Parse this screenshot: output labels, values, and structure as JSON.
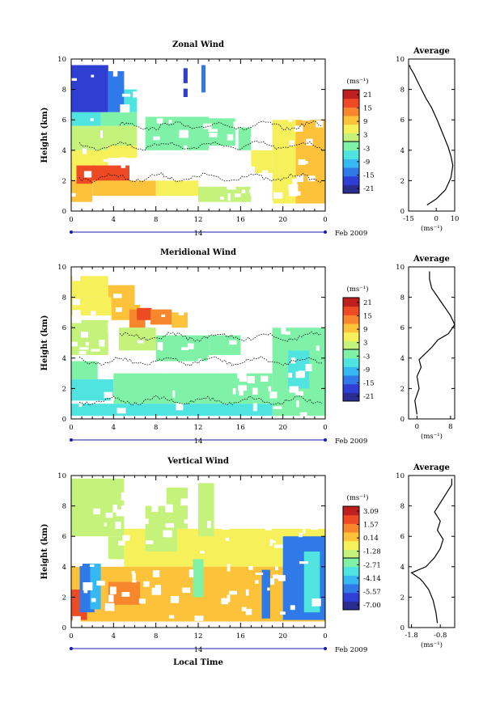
{
  "panels": [
    {
      "id": "zonal",
      "title": "Zonal Wind",
      "cb_unit": "(ms⁻¹)",
      "cb_ticks": [
        "21",
        "15",
        "9",
        "3",
        "-3",
        "-9",
        "-15",
        "-21"
      ],
      "avg_title": "Average",
      "avg_xticks": [
        "-15",
        "0",
        "10"
      ],
      "avg_unit": "(ms⁻¹)"
    },
    {
      "id": "meridional",
      "title": "Meridional Wind",
      "cb_unit": "(ms⁻¹)",
      "cb_ticks": [
        "21",
        "15",
        "9",
        "3",
        "-3",
        "-9",
        "-15",
        "-21"
      ],
      "avg_title": "Average",
      "avg_xticks": [
        "0",
        "8"
      ],
      "avg_unit": "(ms⁻¹)"
    },
    {
      "id": "vertical",
      "title": "Vertical Wind",
      "cb_unit": "(ms⁻¹)",
      "cb_ticks": [
        "3.09",
        "1.57",
        "0.14",
        "-1.28",
        "-2.71",
        "-4.14",
        "-5.57",
        "-7.00"
      ],
      "avg_title": "Average",
      "avg_xticks": [
        "-1.8",
        "-0.8"
      ],
      "avg_unit": "(ms⁻¹)"
    }
  ],
  "shared": {
    "ylabel": "Height (km)",
    "yticks": [
      "0",
      "2",
      "4",
      "6",
      "8",
      "10"
    ],
    "xticks": [
      "0",
      "4",
      "8",
      "12",
      "16",
      "20",
      "0"
    ],
    "day_label": "14",
    "date_label": "Feb 2009",
    "xlabel": "Local Time"
  },
  "colors": {
    "scale": [
      "#2b2c8f",
      "#2f3fd4",
      "#2f7ae8",
      "#36b9f2",
      "#4fe4e0",
      "#7ff2a8",
      "#c4f27a",
      "#f6f05a",
      "#fbc23a",
      "#f7862c",
      "#ee4a24",
      "#c01f1f"
    ],
    "contour": "#000000",
    "day_line": "#1a1aa8"
  },
  "chart_data": [
    {
      "type": "heatmap",
      "title": "Zonal Wind",
      "xlabel": "",
      "ylabel": "Height (km)",
      "xlim": [
        0,
        24
      ],
      "ylim": [
        0,
        10
      ],
      "clim": [
        -21,
        21
      ],
      "colorbar_unit": "(ms⁻¹)",
      "regions": [
        {
          "x": [
            0.0,
            3.5
          ],
          "y": [
            6.5,
            9.6
          ],
          "value": -15
        },
        {
          "x": [
            3.5,
            5.0
          ],
          "y": [
            6.5,
            9.2
          ],
          "value": -11
        },
        {
          "x": [
            5.0,
            6.2
          ],
          "y": [
            6.5,
            8.0
          ],
          "value": -6
        },
        {
          "x": [
            0.0,
            2.8
          ],
          "y": [
            5.6,
            6.5
          ],
          "value": -6
        },
        {
          "x": [
            2.8,
            6.2
          ],
          "y": [
            5.6,
            6.5
          ],
          "value": -3
        },
        {
          "x": [
            10.6,
            11.0
          ],
          "y": [
            7.5,
            9.4
          ],
          "value": -15
        },
        {
          "x": [
            12.3,
            12.7
          ],
          "y": [
            7.8,
            9.6
          ],
          "value": -12
        },
        {
          "x": [
            0.0,
            6.2
          ],
          "y": [
            4.0,
            5.6
          ],
          "value": 3
        },
        {
          "x": [
            7.0,
            13.0
          ],
          "y": [
            4.0,
            6.2
          ],
          "value": -1
        },
        {
          "x": [
            13.0,
            15.5
          ],
          "y": [
            4.3,
            6.1
          ],
          "value": -2
        },
        {
          "x": [
            15.8,
            17.0
          ],
          "y": [
            4.0,
            5.5
          ],
          "value": -1
        },
        {
          "x": [
            17.0,
            19.0
          ],
          "y": [
            2.5,
            4.0
          ],
          "value": 5
        },
        {
          "x": [
            19.0,
            21.2
          ],
          "y": [
            0.5,
            6.0
          ],
          "value": 4
        },
        {
          "x": [
            21.2,
            24.0
          ],
          "y": [
            0.5,
            6.0
          ],
          "value": 8
        },
        {
          "x": [
            0.0,
            3.5
          ],
          "y": [
            2.0,
            4.0
          ],
          "value": 6
        },
        {
          "x": [
            0.0,
            2.0
          ],
          "y": [
            0.6,
            2.0
          ],
          "value": 9
        },
        {
          "x": [
            2.0,
            5.5
          ],
          "y": [
            2.0,
            3.0
          ],
          "value": 15
        },
        {
          "x": [
            0.5,
            2.3
          ],
          "y": [
            1.8,
            3.0
          ],
          "value": 15
        },
        {
          "x": [
            2.0,
            8.0
          ],
          "y": [
            1.0,
            2.0
          ],
          "value": 7
        },
        {
          "x": [
            8.0,
            12.0
          ],
          "y": [
            1.0,
            2.0
          ],
          "value": 4
        },
        {
          "x": [
            3.5,
            6.2
          ],
          "y": [
            3.5,
            4.3
          ],
          "value": 4
        },
        {
          "x": [
            12.0,
            17.0
          ],
          "y": [
            0.6,
            1.6
          ],
          "value": 3
        }
      ],
      "contour_levels": [
        -3,
        0
      ]
    },
    {
      "type": "line",
      "title": "Average",
      "xlabel": "(ms⁻¹)",
      "ylabel": "",
      "xlim": [
        -15,
        10
      ],
      "ylim": [
        0,
        10
      ],
      "x": [
        -5.0,
        0.0,
        5.0,
        8.0,
        9.0,
        8.0,
        6.5,
        4.5,
        2.5,
        0.5,
        -2.5,
        -5.5,
        -8.0,
        -10.5,
        -12.0,
        -14.0,
        -14.5
      ],
      "y": [
        0.4,
        0.8,
        1.4,
        2.2,
        3.0,
        3.6,
        4.2,
        4.8,
        5.4,
        6.0,
        6.8,
        7.4,
        8.0,
        8.6,
        9.0,
        9.4,
        9.6
      ]
    },
    {
      "type": "heatmap",
      "title": "Meridional Wind",
      "xlabel": "",
      "ylabel": "Height (km)",
      "xlim": [
        0,
        24
      ],
      "ylim": [
        0,
        10
      ],
      "clim": [
        -21,
        21
      ],
      "colorbar_unit": "(ms⁻¹)",
      "regions": [
        {
          "x": [
            0.0,
            3.5
          ],
          "y": [
            8.0,
            9.4
          ],
          "value": 4
        },
        {
          "x": [
            3.5,
            6.0
          ],
          "y": [
            7.5,
            8.8
          ],
          "value": 7
        },
        {
          "x": [
            0.0,
            3.8
          ],
          "y": [
            6.8,
            8.0
          ],
          "value": 5
        },
        {
          "x": [
            3.8,
            6.5
          ],
          "y": [
            6.5,
            7.5
          ],
          "value": 9
        },
        {
          "x": [
            5.5,
            7.0
          ],
          "y": [
            6.0,
            7.2
          ],
          "value": 11
        },
        {
          "x": [
            6.2,
            7.6
          ],
          "y": [
            6.5,
            7.3
          ],
          "value": 15
        },
        {
          "x": [
            7.5,
            9.5
          ],
          "y": [
            6.2,
            7.2
          ],
          "value": 12
        },
        {
          "x": [
            9.5,
            11.0
          ],
          "y": [
            6.0,
            7.0
          ],
          "value": 9
        },
        {
          "x": [
            0.0,
            3.5
          ],
          "y": [
            4.2,
            6.5
          ],
          "value": 3
        },
        {
          "x": [
            4.5,
            8.0
          ],
          "y": [
            4.5,
            6.0
          ],
          "value": 1
        },
        {
          "x": [
            8.0,
            13.0
          ],
          "y": [
            3.8,
            5.5
          ],
          "value": -3
        },
        {
          "x": [
            13.0,
            16.0
          ],
          "y": [
            4.2,
            5.5
          ],
          "value": -2
        },
        {
          "x": [
            0.0,
            2.5
          ],
          "y": [
            2.6,
            3.8
          ],
          "value": -2
        },
        {
          "x": [
            0.0,
            4.0
          ],
          "y": [
            1.2,
            2.6
          ],
          "value": -6
        },
        {
          "x": [
            4.0,
            19.0
          ],
          "y": [
            1.0,
            3.0
          ],
          "value": -3
        },
        {
          "x": [
            0.0,
            19.0
          ],
          "y": [
            0.2,
            1.0
          ],
          "value": -6
        },
        {
          "x": [
            19.0,
            24.0
          ],
          "y": [
            0.2,
            6.0
          ],
          "value": -3
        },
        {
          "x": [
            20.5,
            22.5
          ],
          "y": [
            2.0,
            4.5
          ],
          "value": -7
        }
      ],
      "contour_levels": [
        -3,
        0
      ]
    },
    {
      "type": "line",
      "title": "Average",
      "xlabel": "(ms⁻¹)",
      "ylabel": "",
      "xlim": [
        -2,
        9
      ],
      "ylim": [
        0,
        10
      ],
      "x": [
        0.0,
        -0.5,
        0.5,
        0.0,
        1.0,
        0.5,
        2.0,
        3.5,
        5.0,
        7.5,
        9.0,
        8.0,
        6.5,
        5.0,
        3.5,
        3.0,
        3.0
      ],
      "y": [
        0.3,
        1.2,
        2.0,
        2.8,
        3.4,
        3.9,
        4.3,
        4.7,
        5.2,
        5.6,
        6.2,
        6.8,
        7.4,
        8.0,
        8.6,
        9.2,
        9.7
      ]
    },
    {
      "type": "heatmap",
      "title": "Vertical Wind",
      "xlabel": "Local Time",
      "ylabel": "Height (km)",
      "xlim": [
        0,
        24
      ],
      "ylim": [
        0,
        10
      ],
      "clim": [
        -7.0,
        3.09
      ],
      "colorbar_unit": "(ms⁻¹)",
      "regions": [
        {
          "x": [
            0.0,
            5.0
          ],
          "y": [
            6.0,
            9.8
          ],
          "value": -1.6
        },
        {
          "x": [
            3.5,
            5.0
          ],
          "y": [
            4.5,
            6.0
          ],
          "value": -1.2
        },
        {
          "x": [
            5.0,
            24.0
          ],
          "y": [
            4.0,
            6.5
          ],
          "value": -0.6
        },
        {
          "x": [
            0.0,
            24.0
          ],
          "y": [
            0.4,
            4.0
          ],
          "value": 0.2
        },
        {
          "x": [
            0.0,
            1.5
          ],
          "y": [
            0.5,
            2.5
          ],
          "value": 1.6
        },
        {
          "x": [
            3.5,
            6.5
          ],
          "y": [
            1.5,
            3.0
          ],
          "value": 1.4
        },
        {
          "x": [
            7.0,
            10.0
          ],
          "y": [
            5.0,
            8.0
          ],
          "value": -1.5
        },
        {
          "x": [
            9.0,
            11.0
          ],
          "y": [
            6.5,
            9.2
          ],
          "value": -1.2
        },
        {
          "x": [
            12.0,
            13.5
          ],
          "y": [
            6.0,
            9.5
          ],
          "value": -1.3
        },
        {
          "x": [
            0.8,
            2.2
          ],
          "y": [
            1.0,
            4.2
          ],
          "value": -5.0
        },
        {
          "x": [
            1.8,
            2.8
          ],
          "y": [
            1.2,
            4.2
          ],
          "value": -3.8
        },
        {
          "x": [
            11.5,
            12.5
          ],
          "y": [
            2.0,
            4.5
          ],
          "value": -2.0
        },
        {
          "x": [
            18.0,
            18.8
          ],
          "y": [
            0.6,
            3.8
          ],
          "value": -5.2
        },
        {
          "x": [
            20.0,
            24.0
          ],
          "y": [
            0.5,
            6.0
          ],
          "value": -4.6
        },
        {
          "x": [
            22.0,
            23.5
          ],
          "y": [
            1.0,
            5.0
          ],
          "value": -3.0
        }
      ]
    },
    {
      "type": "line",
      "title": "Average",
      "xlabel": "(ms⁻¹)",
      "ylabel": "",
      "xlim": [
        -1.9,
        -0.3
      ],
      "ylim": [
        0,
        10
      ],
      "x": [
        -0.9,
        -0.95,
        -1.05,
        -1.2,
        -1.4,
        -1.5,
        -1.8,
        -1.3,
        -1.0,
        -0.8,
        -0.7,
        -0.9,
        -0.8,
        -1.0,
        -0.8,
        -0.6,
        -0.4,
        -0.4
      ],
      "y": [
        0.3,
        1.0,
        1.8,
        2.5,
        3.0,
        3.2,
        3.6,
        4.0,
        4.6,
        5.2,
        5.8,
        6.4,
        7.0,
        7.6,
        8.2,
        8.8,
        9.4,
        9.8
      ]
    }
  ]
}
